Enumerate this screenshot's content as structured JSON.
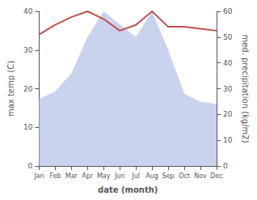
{
  "chart_data": {
    "type": "line",
    "xlabel": "date (month)",
    "ylabel": "max temp (C)",
    "y2label": "med. precipitation (kg/m2)",
    "categories": [
      "Jan",
      "Feb",
      "Mar",
      "Apr",
      "May",
      "Jun",
      "Jul",
      "Aug",
      "Sep",
      "Oct",
      "Nov",
      "Dec"
    ],
    "series": [
      {
        "type": "line",
        "color": "#c0504d",
        "values": [
          34,
          36.5,
          38.5,
          40,
          38,
          35,
          36.5,
          40,
          36,
          36,
          35.5,
          35
        ]
      },
      {
        "type": "area",
        "color": "#b8c4e8",
        "axis": "y2",
        "values": [
          26,
          29,
          36,
          50,
          60,
          55,
          50,
          60,
          45,
          28,
          25,
          24
        ]
      }
    ],
    "ylim": [
      0,
      40
    ],
    "yticks": [
      0,
      10,
      20,
      30,
      40
    ],
    "y2lim": [
      0,
      60
    ],
    "y2ticks": [
      0,
      10,
      20,
      30,
      40,
      50,
      60
    ],
    "grid": false
  }
}
